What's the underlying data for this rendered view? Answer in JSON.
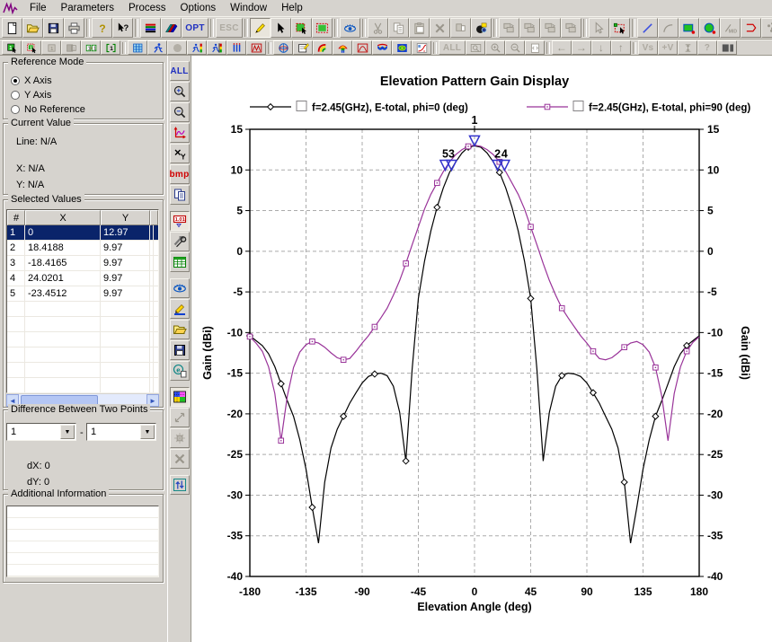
{
  "menu": {
    "items": [
      "File",
      "Parameters",
      "Process",
      "Options",
      "Window",
      "Help"
    ]
  },
  "toolbars": {
    "main": [
      {
        "name": "new-button",
        "icon": "pg"
      },
      {
        "name": "open-button",
        "icon": "fo"
      },
      {
        "name": "save-button",
        "icon": "fl"
      },
      {
        "name": "print-button",
        "icon": "pr"
      },
      "|",
      {
        "name": "help-button",
        "icon": "q"
      },
      {
        "name": "context-help-button",
        "icon": "qa"
      },
      "|",
      {
        "name": "layer-stack-button",
        "icon": "lay"
      },
      {
        "name": "metal-layers-button",
        "icon": "fan"
      },
      {
        "name": "optimize-button",
        "label": "OPT",
        "color": "#2030c0",
        "wide": true
      },
      "|",
      {
        "name": "escape-button",
        "label": "ESC",
        "color": "#aeaaa1",
        "disabled": true,
        "wide": true
      },
      "|",
      {
        "name": "draw-pencil-button",
        "icon": "pen",
        "pressed": true
      },
      {
        "name": "select-arrow-button",
        "icon": "cur"
      },
      {
        "name": "select-polygon-button",
        "icon": "selr"
      },
      {
        "name": "select-region-button",
        "icon": "selr2"
      },
      "|",
      {
        "name": "view-toggle-button",
        "icon": "eyeI"
      },
      "|",
      {
        "name": "cut-button",
        "icon": "cutI",
        "disabled": true
      },
      {
        "name": "copy-button",
        "icon": "cpyg",
        "disabled": true
      },
      {
        "name": "paste-button",
        "icon": "pstI",
        "disabled": true
      },
      {
        "name": "delete-button",
        "icon": "delI",
        "disabled": true
      },
      {
        "name": "duplicate-button",
        "icon": "movI",
        "disabled": true
      },
      {
        "name": "screen-capture-button",
        "icon": "bmb"
      },
      "|",
      {
        "name": "layer-shift-up-button",
        "icon": "lshI",
        "disabled": true
      },
      {
        "name": "layer-shift-down-button",
        "icon": "lshI",
        "disabled": true
      },
      {
        "name": "layer-grow-button",
        "icon": "lshI",
        "disabled": true
      },
      {
        "name": "layer-merge-button",
        "icon": "lshI",
        "disabled": true
      },
      "|",
      {
        "name": "pick-vertex-button",
        "icon": "curG",
        "disabled": true
      },
      {
        "name": "rect-select-button",
        "icon": "lasso"
      },
      "|",
      {
        "name": "draw-line-button",
        "icon": "lineI"
      },
      {
        "name": "draw-arc-button",
        "icon": "arcI",
        "disabled": true
      },
      {
        "name": "draw-rectangle-button",
        "icon": "grect"
      },
      {
        "name": "draw-circle-button",
        "icon": "gcirc"
      },
      {
        "name": "insert-mid-point-button",
        "icon": "midI",
        "disabled": true
      },
      {
        "name": "draw-polygon-button",
        "icon": "rpoly"
      },
      {
        "name": "insert-via-button",
        "icon": "vias",
        "disabled": true
      },
      {
        "name": "edge-cut-button",
        "icon": "edge",
        "disabled": true
      }
    ],
    "second": [
      {
        "name": "select-layer-1-button",
        "icon": "s1"
      },
      {
        "name": "select-layer-dashed-button",
        "icon": "s1d"
      },
      {
        "name": "layer-1-button",
        "icon": "g1",
        "disabled": true
      },
      {
        "name": "layer-box-button",
        "icon": "gbox",
        "disabled": true
      },
      {
        "name": "merge-layers-button",
        "icon": "m11"
      },
      {
        "name": "bracket-layer-button",
        "icon": "b1"
      },
      "|",
      {
        "name": "mesh-button",
        "icon": "mesh"
      },
      {
        "name": "simulate-button",
        "icon": "run"
      },
      {
        "name": "stop-button",
        "icon": "gcirc0",
        "disabled": true
      },
      {
        "name": "simulate-pattern-button",
        "icon": "runc"
      },
      {
        "name": "simulate-current-button",
        "icon": "runc2"
      },
      {
        "name": "current-distribution-button",
        "icon": "iii"
      },
      {
        "name": "s-parameters-button",
        "icon": "mm"
      },
      "|",
      {
        "name": "radiation-sphere-button",
        "icon": "sph"
      },
      {
        "name": "notes-button",
        "icon": "note"
      },
      {
        "name": "gain-display-button",
        "icon": "rnb"
      },
      {
        "name": "antenna-pattern-button",
        "icon": "ant"
      },
      {
        "name": "pattern-plot-button",
        "icon": "rbox"
      },
      {
        "name": "3d-pattern-button",
        "icon": "wing"
      },
      {
        "name": "2d-pattern-button",
        "icon": "eyeb"
      },
      {
        "name": "frequency-plot-button",
        "icon": "elg"
      },
      "|",
      {
        "name": "zoom-all-button",
        "label": "ALL",
        "color": "#aeaaa1",
        "disabled": true,
        "wide": true
      },
      {
        "name": "zoom-window-button",
        "icon": "magbox",
        "disabled": true
      },
      {
        "name": "zoom-in-button",
        "icon": "magp",
        "disabled": true
      },
      {
        "name": "zoom-out-button",
        "icon": "magm",
        "disabled": true
      },
      {
        "name": "redraw-button",
        "icon": "pgr",
        "disabled": true
      },
      "|",
      {
        "name": "pan-left-button",
        "glyph": "←",
        "disabled": true
      },
      {
        "name": "pan-right-button",
        "glyph": "→",
        "disabled": true
      },
      {
        "name": "pan-down-button",
        "glyph": "↓",
        "disabled": true
      },
      {
        "name": "pan-up-button",
        "glyph": "↑",
        "disabled": true
      },
      "|",
      {
        "name": "voltage-source-button",
        "label": "Vs",
        "color": "#aeaaa1",
        "disabled": true
      },
      {
        "name": "probe-voltage-button",
        "label": "+V",
        "color": "#aeaaa1",
        "disabled": true
      },
      {
        "name": "height-measure-button",
        "icon": "ibar",
        "disabled": true
      },
      {
        "name": "query-button",
        "label": "?",
        "color": "#aeaaa1",
        "disabled": true
      },
      {
        "name": "dark-squares-button",
        "icon": "dsq"
      }
    ],
    "side": [
      {
        "name": "graph-zoom-all-button",
        "label": "ALL",
        "color": "#2030c0"
      },
      {
        "name": "graph-zoom-in-button",
        "icon": "magpB"
      },
      {
        "name": "graph-zoom-out-button",
        "icon": "magmB"
      },
      {
        "name": "graph-scale-button",
        "icon": "vax"
      },
      {
        "name": "marker-toggle-button",
        "icon": "vxy"
      },
      {
        "name": "save-bmp-button",
        "label": "bmp",
        "color": "#d00000"
      },
      {
        "name": "copy-graph-button",
        "icon": "cpyB"
      },
      "-",
      {
        "name": "marker-values-button",
        "icon": "v101",
        "pressed": true
      },
      {
        "name": "graph-options-button",
        "icon": "vtools"
      },
      {
        "name": "data-table-button",
        "icon": "vtbl"
      },
      "-",
      {
        "name": "display-options-button",
        "icon": "eyeI"
      },
      {
        "name": "annotate-button",
        "icon": "vpen"
      },
      {
        "name": "open-graph-button",
        "icon": "fo"
      },
      {
        "name": "save-graph-button",
        "icon": "fl"
      },
      {
        "name": "export-button",
        "icon": "vexp"
      },
      "-",
      {
        "name": "pattern-style-button",
        "icon": "vpatt",
        "pressed": true
      },
      {
        "name": "expand-button",
        "icon": "vexpand",
        "disabled": true
      },
      {
        "name": "fit-button",
        "icon": "vfit",
        "disabled": true
      },
      {
        "name": "delete-curve-button",
        "icon": "delI",
        "disabled": true
      },
      "-",
      {
        "name": "refresh-button",
        "icon": "vrefr"
      }
    ]
  },
  "left_panel": {
    "reference_mode": {
      "title": "Reference Mode",
      "options": [
        {
          "label": "X Axis",
          "selected": true
        },
        {
          "label": "Y Axis",
          "selected": false
        },
        {
          "label": "No Reference",
          "selected": false
        }
      ]
    },
    "current_value": {
      "title": "Current Value",
      "line": "Line: N/A",
      "x": "X: N/A",
      "y": "Y: N/A"
    },
    "selected_values": {
      "title": "Selected Values",
      "columns": [
        "#",
        "X",
        "Y"
      ],
      "rows": [
        [
          "1",
          "0",
          "12.97"
        ],
        [
          "2",
          "18.4188",
          "9.97"
        ],
        [
          "3",
          "-18.4165",
          "9.97"
        ],
        [
          "4",
          "24.0201",
          "9.97"
        ],
        [
          "5",
          "-23.4512",
          "9.97"
        ]
      ],
      "selected_row": 0
    },
    "difference": {
      "title": "Difference Between Two Points",
      "combo1": "1",
      "sep": "-",
      "combo2": "1",
      "dx": "dX: 0",
      "dy": "dY: 0"
    },
    "additional": {
      "title": "Additional Information"
    }
  },
  "chart_data": {
    "type": "line",
    "title": "Elevation Pattern Gain Display",
    "xlabel": "Elevation Angle (deg)",
    "ylabel_left": "Gain (dBi)",
    "ylabel_right": "Gain (dBi)",
    "xlim": [
      -180,
      180
    ],
    "ylim": [
      -40,
      15
    ],
    "x_ticks": [
      -180,
      -135,
      -90,
      -45,
      0,
      45,
      90,
      135,
      180
    ],
    "y_ticks": [
      15,
      10,
      5,
      0,
      -5,
      -10,
      -15,
      -20,
      -25,
      -30,
      -35,
      -40
    ],
    "grid": true,
    "grid_color": "#ababab",
    "legend_position": "top",
    "selection_color": "#3333cc",
    "marker_every": 25,
    "series": [
      {
        "name": "f=2.45(GHz), E-total, phi=0 (deg)",
        "color": "#000000",
        "marker": "diamond",
        "x": [
          -180,
          -175,
          -170,
          -165,
          -160,
          -155,
          -150,
          -145,
          -140,
          -135,
          -130,
          -125,
          -120,
          -115,
          -110,
          -105,
          -100,
          -95,
          -90,
          -85,
          -80,
          -75,
          -70,
          -65,
          -60,
          -55,
          -50,
          -45,
          -40,
          -35,
          -30,
          -25,
          -20,
          -15,
          -10,
          -5,
          0,
          5,
          10,
          15,
          20,
          25,
          30,
          35,
          40,
          45,
          50,
          55,
          60,
          65,
          70,
          75,
          80,
          85,
          90,
          95,
          100,
          105,
          110,
          115,
          120,
          125,
          130,
          135,
          140,
          145,
          150,
          155,
          160,
          165,
          170,
          175,
          180
        ],
        "y": [
          -10.4,
          -11.0,
          -11.6,
          -12.6,
          -14.2,
          -16.3,
          -18.4,
          -20.3,
          -23.2,
          -26.8,
          -31.5,
          -35.9,
          -28.4,
          -24.2,
          -21.9,
          -20.3,
          -18.7,
          -17.4,
          -16.2,
          -15.4,
          -15.1,
          -15.0,
          -15.3,
          -16.6,
          -19.8,
          -25.8,
          -14.5,
          -5.8,
          -1.2,
          2.5,
          5.4,
          7.8,
          9.7,
          11.0,
          12.1,
          12.8,
          12.97,
          12.8,
          12.1,
          11.0,
          9.7,
          7.8,
          5.4,
          2.5,
          -1.2,
          -5.8,
          -14.5,
          -25.8,
          -19.8,
          -16.6,
          -15.3,
          -15.0,
          -15.1,
          -15.4,
          -16.2,
          -17.4,
          -18.7,
          -20.3,
          -21.9,
          -24.2,
          -28.4,
          -35.9,
          -31.5,
          -26.8,
          -23.2,
          -20.3,
          -18.4,
          -16.3,
          -14.2,
          -12.6,
          -11.6,
          -11.0,
          -10.4
        ]
      },
      {
        "name": "f=2.45(GHz), E-total, phi=90 (deg)",
        "color": "#993399",
        "marker": "square",
        "x": [
          -180,
          -175,
          -170,
          -165,
          -160,
          -155,
          -150,
          -145,
          -140,
          -135,
          -130,
          -125,
          -120,
          -115,
          -110,
          -105,
          -100,
          -95,
          -90,
          -85,
          -80,
          -75,
          -70,
          -65,
          -60,
          -55,
          -50,
          -45,
          -40,
          -35,
          -30,
          -25,
          -20,
          -15,
          -10,
          -5,
          0,
          5,
          10,
          15,
          20,
          25,
          30,
          35,
          40,
          45,
          50,
          55,
          60,
          65,
          70,
          75,
          80,
          85,
          90,
          95,
          100,
          105,
          110,
          115,
          120,
          125,
          130,
          135,
          140,
          145,
          150,
          155,
          160,
          165,
          170,
          175,
          180
        ],
        "y": [
          -10.5,
          -11.3,
          -12.3,
          -14.2,
          -17.5,
          -23.3,
          -17.8,
          -14.3,
          -12.4,
          -11.5,
          -11.1,
          -11.3,
          -11.8,
          -12.5,
          -13.1,
          -13.35,
          -13.2,
          -12.3,
          -11.3,
          -10.4,
          -9.3,
          -8.2,
          -7.0,
          -5.4,
          -3.6,
          -1.5,
          0.8,
          3.0,
          5.2,
          7.0,
          8.4,
          9.8,
          11.0,
          11.9,
          12.5,
          12.9,
          13.05,
          12.9,
          12.5,
          11.9,
          11.0,
          9.8,
          8.4,
          7.0,
          5.2,
          3.0,
          0.8,
          -1.5,
          -3.6,
          -5.4,
          -7.0,
          -8.2,
          -9.3,
          -10.4,
          -11.3,
          -12.3,
          -13.2,
          -13.35,
          -13.1,
          -12.5,
          -11.8,
          -11.3,
          -11.1,
          -11.5,
          -12.4,
          -14.3,
          -17.8,
          -23.3,
          -17.5,
          -14.2,
          -12.3,
          -11.2,
          -10.5
        ]
      }
    ],
    "selected_points": [
      {
        "label": "1",
        "x": 0,
        "y": 12.97
      },
      {
        "label": "2",
        "x": 18.4188,
        "y": 9.97
      },
      {
        "label": "3",
        "x": -18.4165,
        "y": 9.97
      },
      {
        "label": "4",
        "x": 24.0201,
        "y": 9.97
      },
      {
        "label": "5",
        "x": -23.4512,
        "y": 9.97
      }
    ]
  }
}
